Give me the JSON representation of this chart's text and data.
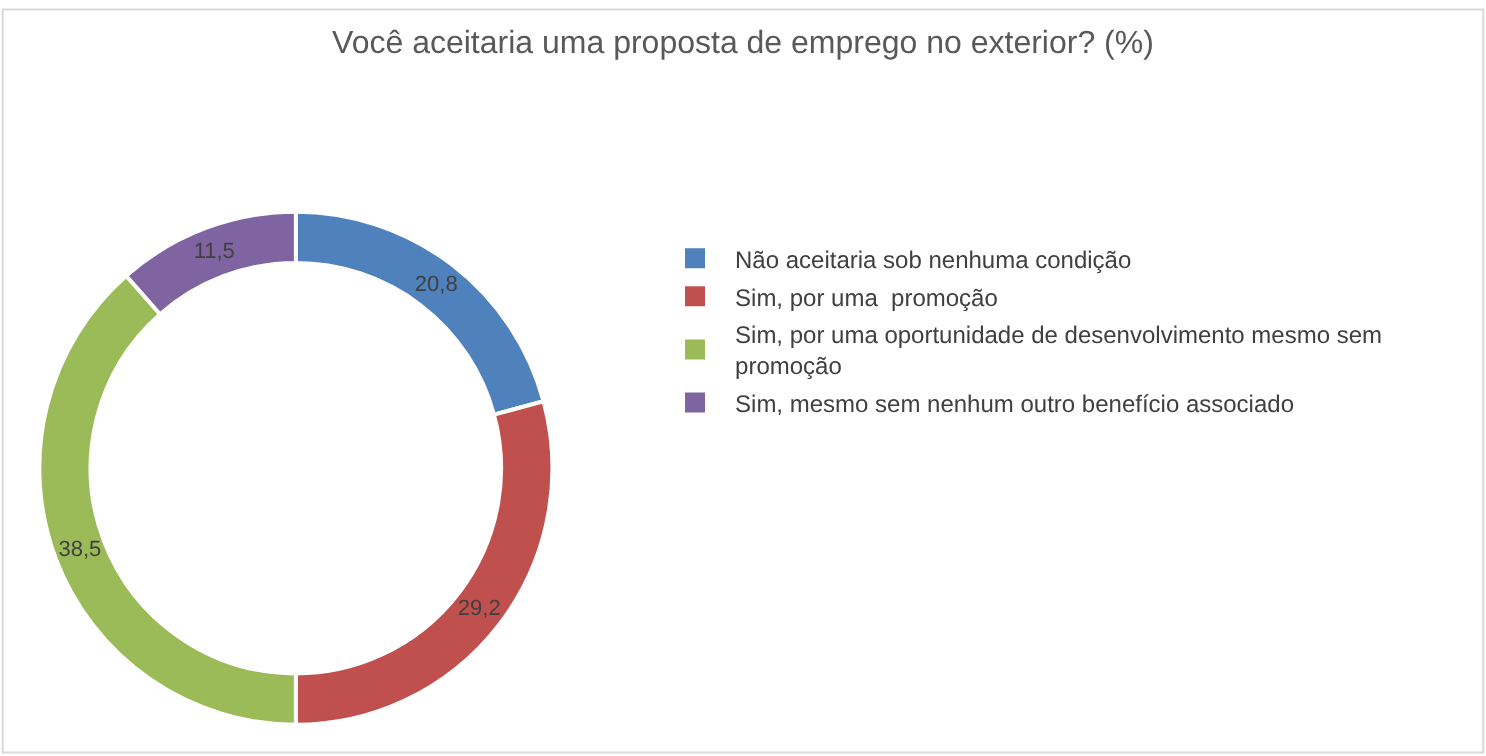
{
  "chart_data": {
    "type": "donut",
    "title": "Você aceitaria uma proposta de emprego no exterior? (%)",
    "categories": [
      "Não aceitaria sob nenhuma condição",
      "Sim, por uma  promoção",
      "Sim, por uma oportunidade de desenvolvimento mesmo sem promoção",
      "Sim, mesmo sem nenhum outro benefício associado"
    ],
    "values": [
      20.8,
      29.2,
      38.5,
      11.5
    ],
    "value_labels": [
      "20,8",
      "29,2",
      "38,5",
      "11,5"
    ],
    "colors": [
      "#4f81bd",
      "#c0504d",
      "#9bbb59",
      "#8064a2"
    ],
    "legend": "right"
  }
}
